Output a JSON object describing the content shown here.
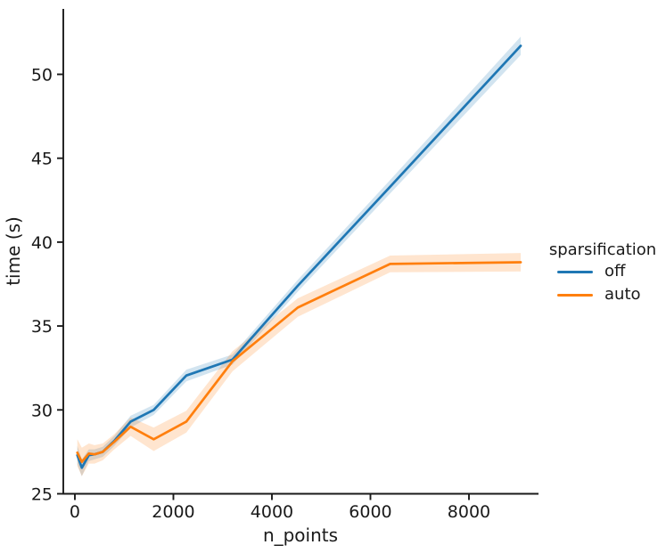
{
  "chart_data": {
    "type": "line",
    "title": "",
    "xlabel": "n_points",
    "ylabel": "time (s)",
    "x": [
      50,
      141,
      283,
      400,
      566,
      800,
      1131,
      1600,
      2263,
      3200,
      4525,
      6400,
      9051
    ],
    "series": [
      {
        "name": "off",
        "color": "#1f77b4",
        "values": [
          27.3,
          26.55,
          27.3,
          27.35,
          27.5,
          28.15,
          29.3,
          30.0,
          32.05,
          33.0,
          37.4,
          43.3,
          51.7
        ],
        "ci_halfwidth": [
          0.55,
          0.5,
          0.35,
          0.3,
          0.3,
          0.3,
          0.35,
          0.3,
          0.35,
          0.3,
          0.35,
          0.4,
          0.55
        ]
      },
      {
        "name": "auto",
        "color": "#ff7f0e",
        "values": [
          27.45,
          26.9,
          27.4,
          27.35,
          27.5,
          28.1,
          29.0,
          28.25,
          29.3,
          32.9,
          36.1,
          38.7,
          38.8
        ],
        "ci_halfwidth": [
          0.8,
          0.85,
          0.6,
          0.55,
          0.5,
          0.45,
          0.55,
          0.7,
          0.65,
          0.6,
          0.55,
          0.5,
          0.55
        ]
      }
    ],
    "legend": {
      "title": "sparsification",
      "position": "right-outside"
    },
    "xticks": [
      0,
      2000,
      4000,
      6000,
      8000
    ],
    "yticks": [
      25,
      30,
      35,
      40,
      45,
      50
    ],
    "xlim": [
      -235,
      9412
    ],
    "ylim": [
      25,
      53.9
    ],
    "grid": false,
    "band_alpha": 0.2,
    "axis_color": "#1a1a1a",
    "line_width": 2.7
  }
}
